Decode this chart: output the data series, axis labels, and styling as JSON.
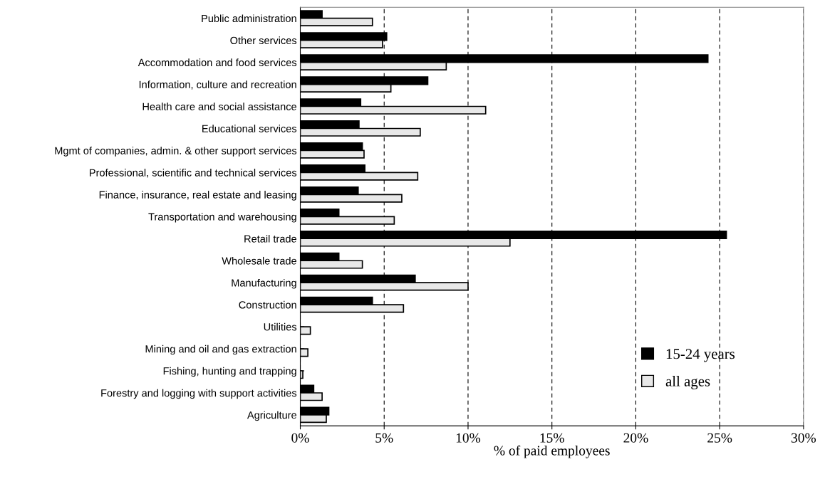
{
  "chart_data": {
    "type": "bar",
    "orientation": "horizontal",
    "xlabel": "% of paid employees",
    "categories": [
      "Public administration",
      "Other services",
      "Accommodation and food services",
      "Information, culture and recreation",
      "Health care and social assistance",
      "Educational services",
      "Mgmt of companies, admin. & other support services",
      "Professional, scientific and technical services",
      "Finance, insurance, real estate and leasing",
      "Transportation and warehousing",
      "Retail trade",
      "Wholesale trade",
      "Manufacturing",
      "Construction",
      "Utilities",
      "Mining and oil and gas extraction",
      "Fishing, hunting and trapping",
      "Forestry and logging with support activities",
      "Agriculture"
    ],
    "series": [
      {
        "name": "15-24 years",
        "color": "#000000",
        "values": [
          1.3,
          5.15,
          24.3,
          7.6,
          3.6,
          3.5,
          3.7,
          3.85,
          3.45,
          2.3,
          25.4,
          2.3,
          6.85,
          4.3,
          null,
          null,
          null,
          0.8,
          1.7
        ]
      },
      {
        "name": "all ages",
        "color": "#e8e8e8",
        "values": [
          4.3,
          4.9,
          8.7,
          5.4,
          11.05,
          7.15,
          3.8,
          7.0,
          6.05,
          5.6,
          12.5,
          3.7,
          10.0,
          6.15,
          0.6,
          0.45,
          0.15,
          1.3,
          1.55
        ]
      }
    ],
    "xlim": [
      0,
      30
    ],
    "xticks": [
      {
        "value": 0,
        "label": "0%"
      },
      {
        "value": 5,
        "label": "5%"
      },
      {
        "value": 10,
        "label": "10%"
      },
      {
        "value": 15,
        "label": "15%"
      },
      {
        "value": 20,
        "label": "20%"
      },
      {
        "value": 25,
        "label": "25%"
      },
      {
        "value": 30,
        "label": "30%"
      }
    ],
    "grid": "x",
    "legend": "bottom right"
  }
}
